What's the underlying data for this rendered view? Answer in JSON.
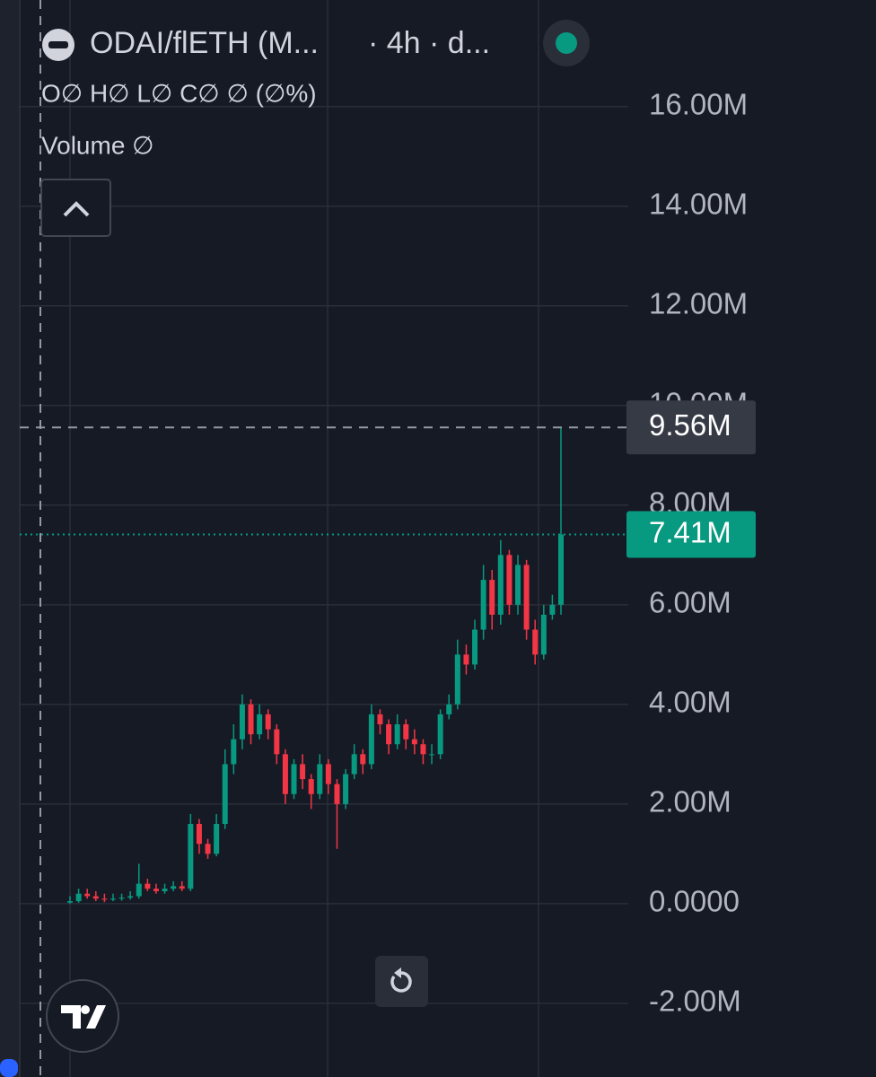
{
  "chart_data": {
    "type": "candlestick",
    "symbol": "ODAI/flETH (M...",
    "interval": "· 4h · d...",
    "ohlc_legend": "O∅ H∅ L∅ C∅ ∅ (∅%)",
    "volume_legend": "Volume ∅",
    "up_color": "#089981",
    "down_color": "#f23645",
    "ylim": [
      -3480000,
      18140000
    ],
    "yticks": [
      {
        "value": -2000000,
        "label": "-2.00M"
      },
      {
        "value": 0,
        "label": "0.0000"
      },
      {
        "value": 2000000,
        "label": "2.00M"
      },
      {
        "value": 4000000,
        "label": "4.00M"
      },
      {
        "value": 6000000,
        "label": "6.00M"
      },
      {
        "value": 8000000,
        "label": "8.00M"
      },
      {
        "value": 10000000,
        "label": "10.00M"
      },
      {
        "value": 12000000,
        "label": "12.00M"
      },
      {
        "value": 14000000,
        "label": "14.00M"
      },
      {
        "value": 16000000,
        "label": "16.00M"
      }
    ],
    "grid": true,
    "crosshair": {
      "value": 9560000,
      "label": "9.56M"
    },
    "last_price": {
      "value": 7410000,
      "label": "7.41M"
    },
    "open": [
      20000,
      50000,
      200000,
      150000,
      100000,
      80000,
      100000,
      120000,
      150000,
      400000,
      300000,
      250000,
      300000,
      350000,
      300000,
      1600000,
      1200000,
      1000000,
      1600000,
      2800000,
      3300000,
      4000000,
      3400000,
      3800000,
      3500000,
      3000000,
      2200000,
      2800000,
      2500000,
      2200000,
      2800000,
      2400000,
      2000000,
      2600000,
      3000000,
      2800000,
      3800000,
      3600000,
      3200000,
      3600000,
      3300000,
      3200000,
      3000000,
      3000000,
      3800000,
      4000000,
      5000000,
      4800000,
      5500000,
      6500000,
      5800000,
      7000000,
      6000000,
      6800000,
      5500000,
      5000000,
      5800000,
      6000000
    ],
    "high": [
      150000,
      300000,
      300000,
      250000,
      200000,
      200000,
      200000,
      250000,
      800000,
      500000,
      400000,
      400000,
      450000,
      450000,
      1800000,
      1700000,
      1300000,
      1800000,
      3100000,
      3600000,
      4200000,
      4100000,
      4000000,
      3900000,
      3600000,
      3100000,
      2900000,
      3000000,
      2600000,
      3000000,
      2900000,
      2500000,
      2700000,
      3200000,
      3100000,
      4000000,
      3900000,
      3700000,
      3800000,
      3700000,
      3500000,
      3300000,
      3200000,
      3900000,
      4200000,
      5300000,
      5200000,
      5700000,
      6800000,
      6700000,
      7300000,
      7100000,
      7000000,
      6900000,
      5700000,
      6000000,
      6200000,
      9560000
    ],
    "low": [
      0,
      20000,
      100000,
      50000,
      30000,
      50000,
      60000,
      80000,
      100000,
      250000,
      200000,
      200000,
      250000,
      250000,
      250000,
      1000000,
      900000,
      950000,
      1500000,
      2600000,
      3100000,
      3200000,
      3300000,
      3300000,
      2800000,
      2000000,
      2100000,
      2300000,
      1900000,
      2100000,
      2200000,
      1100000,
      1900000,
      2500000,
      2600000,
      2700000,
      3400000,
      3000000,
      3100000,
      3100000,
      3000000,
      2800000,
      2800000,
      2900000,
      3700000,
      3900000,
      4600000,
      4700000,
      5300000,
      5500000,
      5600000,
      5800000,
      5800000,
      5300000,
      4800000,
      4900000,
      5700000,
      5800000
    ],
    "close": [
      50000,
      200000,
      150000,
      100000,
      80000,
      100000,
      120000,
      150000,
      400000,
      300000,
      250000,
      300000,
      350000,
      300000,
      1600000,
      1200000,
      1000000,
      1600000,
      2800000,
      3300000,
      4000000,
      3400000,
      3800000,
      3500000,
      3000000,
      2200000,
      2800000,
      2500000,
      2200000,
      2800000,
      2400000,
      2000000,
      2600000,
      3000000,
      2800000,
      3800000,
      3600000,
      3200000,
      3600000,
      3300000,
      3200000,
      3000000,
      3000000,
      3800000,
      4000000,
      5000000,
      4800000,
      5500000,
      6500000,
      5800000,
      7000000,
      6000000,
      6800000,
      5500000,
      5000000,
      5800000,
      6000000,
      7410000
    ]
  }
}
